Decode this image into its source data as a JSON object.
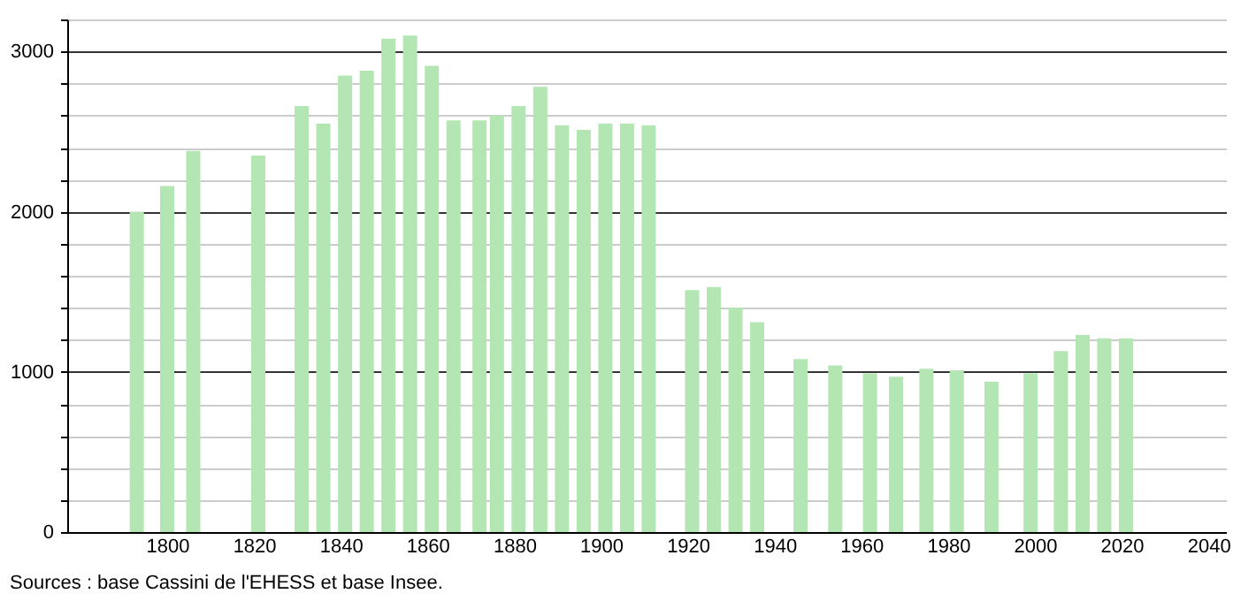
{
  "chart_data": {
    "type": "bar",
    "color": "#b3e6b3",
    "x": [
      1793,
      1800,
      1806,
      1821,
      1831,
      1836,
      1841,
      1846,
      1851,
      1856,
      1861,
      1866,
      1872,
      1876,
      1881,
      1886,
      1891,
      1896,
      1901,
      1906,
      1911,
      1921,
      1926,
      1931,
      1936,
      1946,
      1954,
      1962,
      1968,
      1975,
      1982,
      1990,
      1999,
      2006,
      2011,
      2016,
      2021
    ],
    "values": [
      2000,
      2160,
      2380,
      2350,
      2660,
      2550,
      2850,
      2880,
      3080,
      3100,
      2910,
      2570,
      2570,
      2600,
      2660,
      2780,
      2540,
      2510,
      2550,
      2550,
      2540,
      1510,
      1530,
      1400,
      1310,
      1080,
      1040,
      990,
      970,
      1020,
      1010,
      940,
      990,
      1130,
      1230,
      1210,
      1210
    ],
    "xlim": [
      1779,
      2042
    ],
    "xticks": [
      1800,
      1820,
      1840,
      1860,
      1880,
      1900,
      1920,
      1940,
      1960,
      1980,
      2000,
      2020,
      2040
    ],
    "ylim": [
      0,
      3200
    ],
    "yticks": [
      0,
      {
        "value": 200,
        "label": null
      },
      {
        "value": 400,
        "label": null
      },
      {
        "value": 600,
        "label": null
      },
      {
        "value": 800,
        "label": null
      },
      1000,
      {
        "value": 1200,
        "label": null
      },
      {
        "value": 1400,
        "label": null
      },
      {
        "value": 1600,
        "label": null
      },
      {
        "value": 1800,
        "label": null
      },
      2000,
      {
        "value": 2200,
        "label": null
      },
      {
        "value": 2400,
        "label": null
      },
      {
        "value": 2600,
        "label": null
      },
      {
        "value": 2800,
        "label": null
      },
      3000,
      {
        "value": 3200,
        "label": null
      }
    ],
    "grid": "y",
    "annotations": [
      "Sources : base Cassini de l'EHESS et base Insee."
    ]
  }
}
